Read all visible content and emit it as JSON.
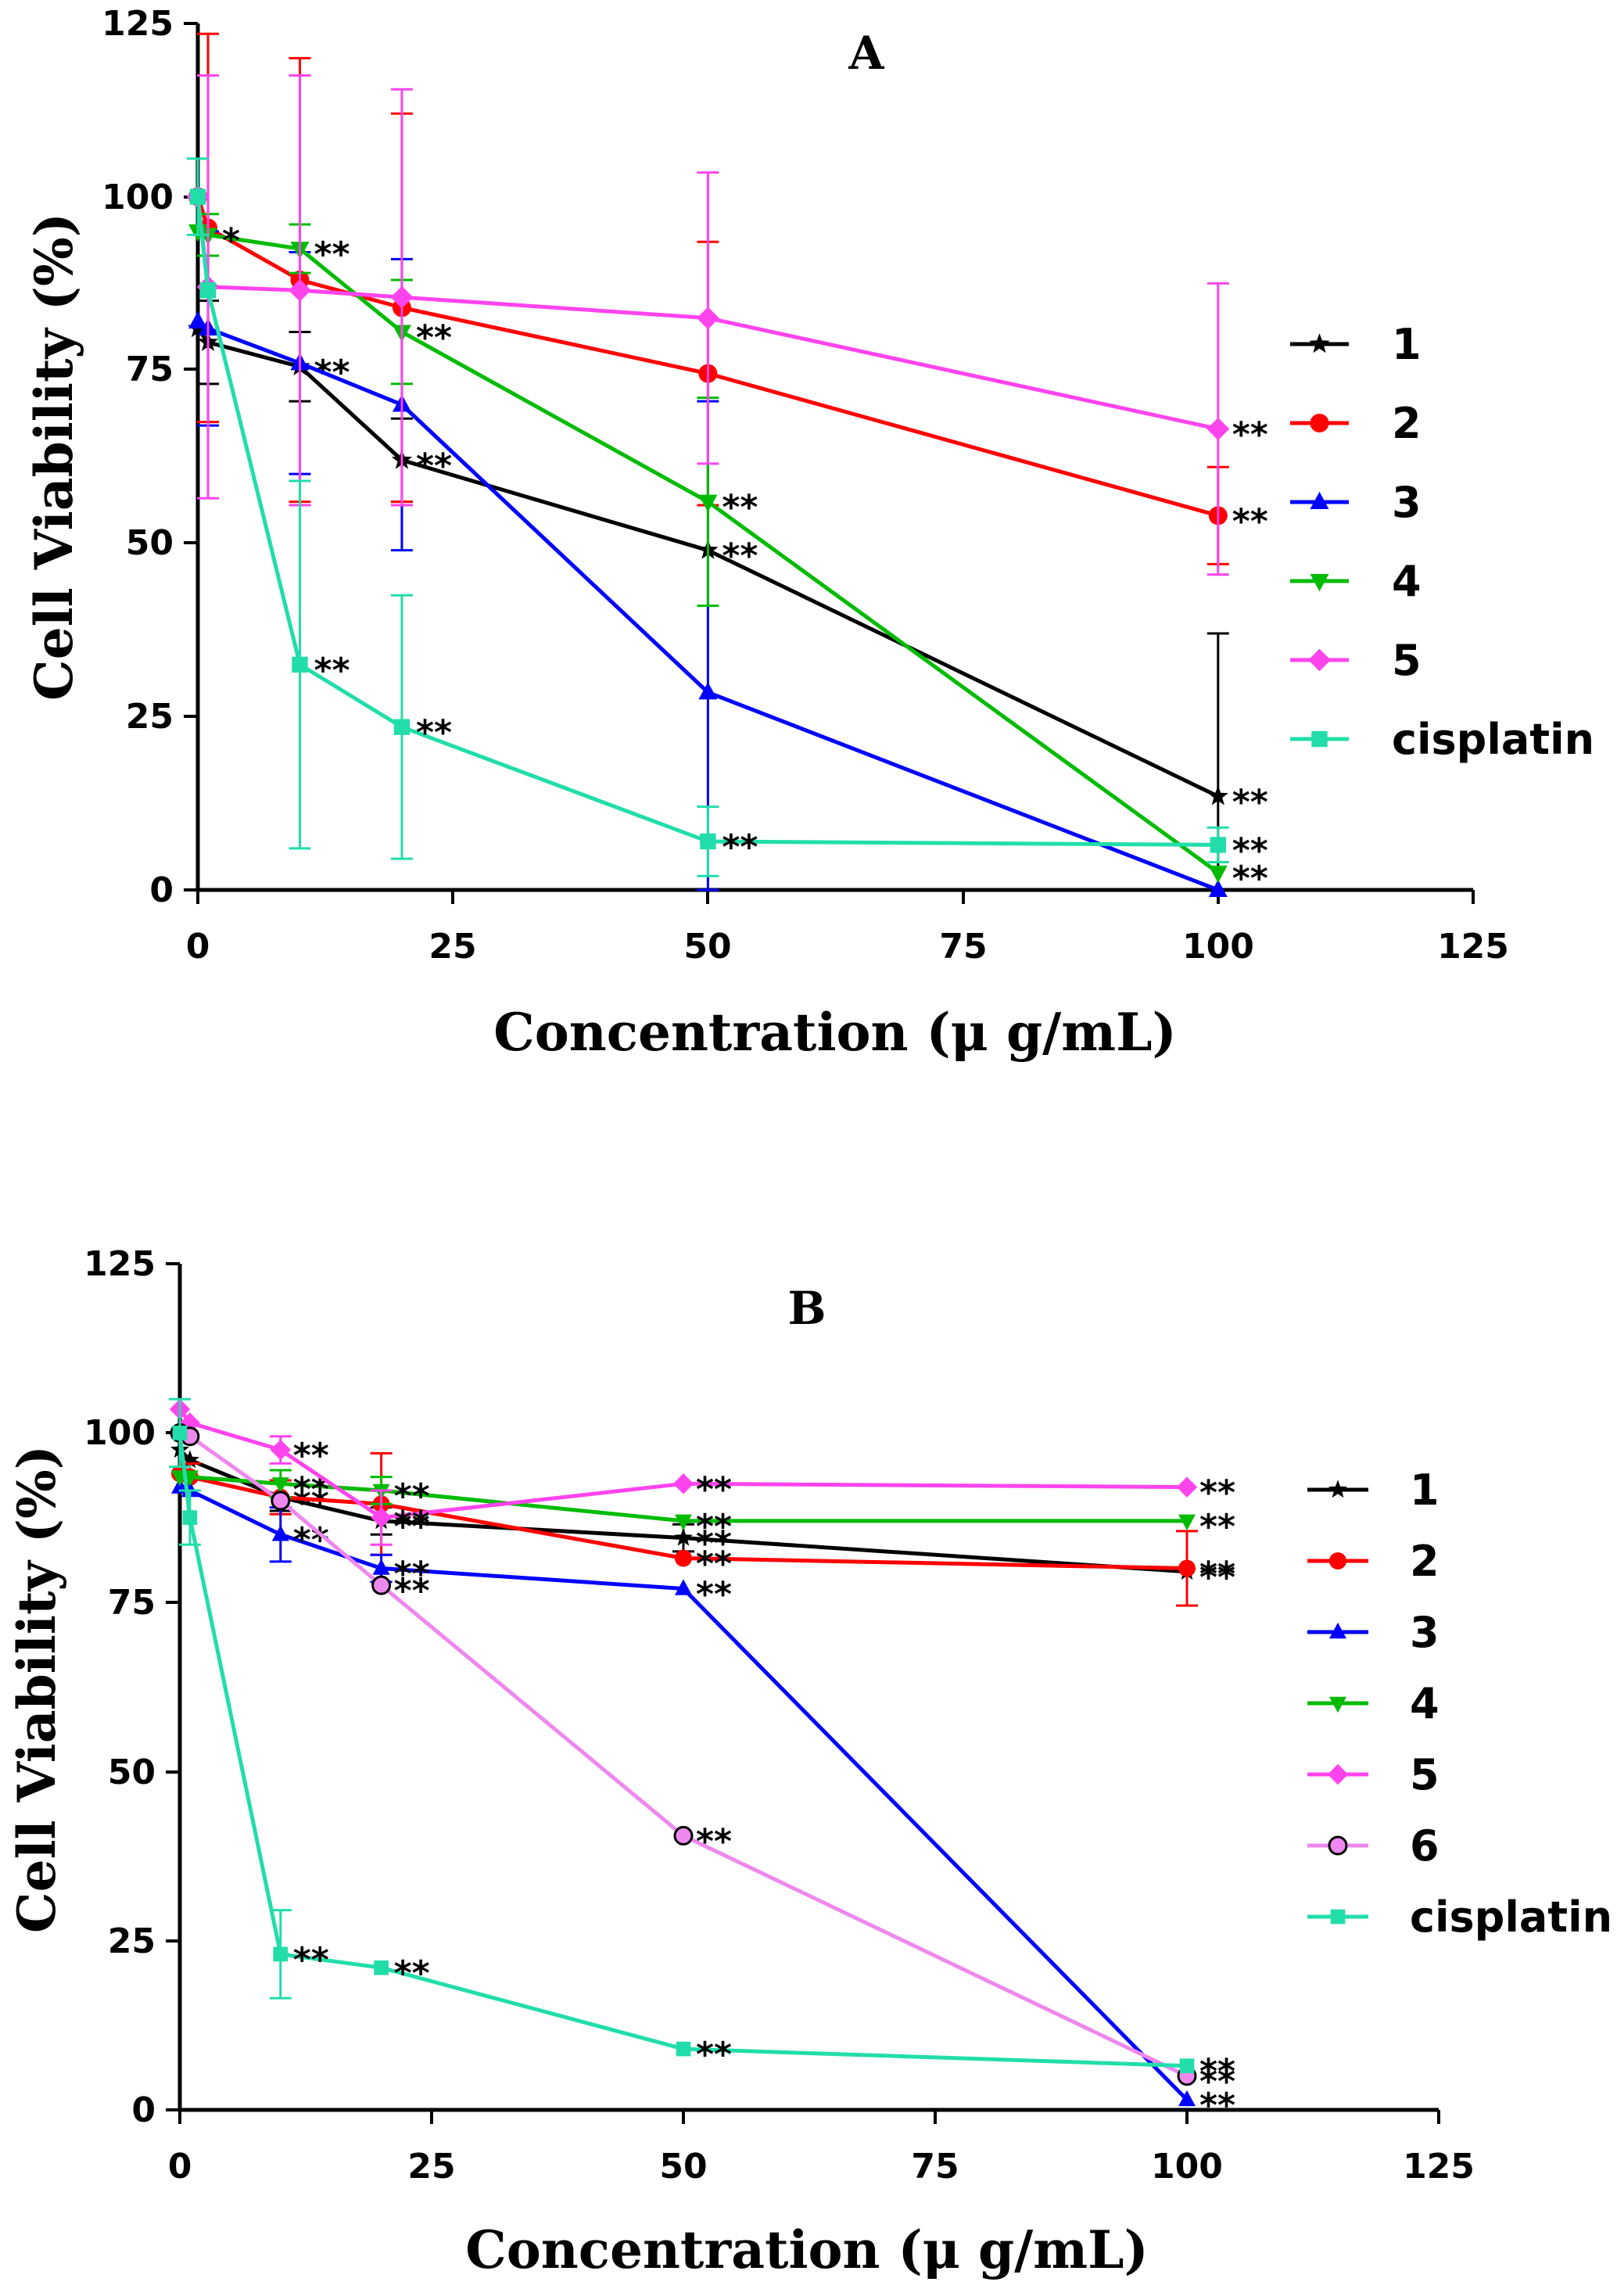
{
  "chart_data": [
    {
      "type": "line",
      "panel": "A",
      "title": "A",
      "xlabel": "Concentration (μ g/mL)",
      "ylabel": "Cell Viability (%)",
      "xlim": [
        0,
        125
      ],
      "ylim": [
        0,
        125
      ],
      "xticks": [
        "0",
        "25",
        "50",
        "75",
        "100",
        "125"
      ],
      "yticks": [
        "0",
        "25",
        "50",
        "75",
        "100",
        "125"
      ],
      "legend_position": "right",
      "series": [
        {
          "name": "1",
          "color": "#000000",
          "marker": "star",
          "x": [
            0,
            1,
            10,
            20,
            50,
            100
          ],
          "y": [
            81,
            79,
            75.5,
            62,
            49,
            13.5
          ],
          "err": [
            0,
            6,
            5,
            6,
            0,
            23.5
          ],
          "sig": [
            "",
            "",
            "**",
            "**",
            "**",
            "**"
          ]
        },
        {
          "name": "2",
          "color": "#ff0000",
          "marker": "circle",
          "x": [
            0,
            1,
            10,
            20,
            50,
            100
          ],
          "y": [
            100,
            95.5,
            88,
            84,
            74.5,
            54
          ],
          "err": [
            0,
            28,
            32,
            28,
            19,
            7
          ],
          "sig": [
            "",
            "",
            "",
            "",
            "",
            "**"
          ]
        },
        {
          "name": "3",
          "color": "#0000ff",
          "marker": "triangle-up",
          "x": [
            0,
            1,
            10,
            20,
            50,
            100
          ],
          "y": [
            82,
            81,
            76,
            70,
            28.5,
            0
          ],
          "err": [
            0,
            14,
            16,
            21,
            42,
            0
          ],
          "sig": [
            "",
            "",
            "",
            "",
            "",
            ""
          ]
        },
        {
          "name": "4",
          "color": "#00bb00",
          "marker": "triangle-down",
          "x": [
            0,
            1,
            10,
            20,
            50,
            100
          ],
          "y": [
            95,
            94.5,
            92.5,
            80.5,
            56,
            2.5
          ],
          "err": [
            0,
            3,
            3.5,
            7.5,
            15,
            0
          ],
          "sig": [
            "",
            "*",
            "**",
            "**",
            "**",
            "**"
          ]
        },
        {
          "name": "5",
          "color": "#ff44ee",
          "marker": "diamond",
          "x": [
            0,
            1,
            10,
            20,
            50,
            100
          ],
          "y": [
            100,
            87,
            86.5,
            85.5,
            82.5,
            66.5
          ],
          "err": [
            0,
            30.5,
            31,
            30,
            21,
            21
          ],
          "sig": [
            "",
            "",
            "",
            "",
            "",
            "**"
          ]
        },
        {
          "name": "cisplatin",
          "color": "#22ddaa",
          "marker": "square",
          "x": [
            0,
            1,
            10,
            20,
            50,
            100
          ],
          "y": [
            100,
            86.5,
            32.5,
            23.5,
            7,
            6.5
          ],
          "err": [
            5.5,
            0,
            26.5,
            19,
            5,
            2.5
          ],
          "sig": [
            "",
            "",
            "**",
            "**",
            "**",
            "**"
          ]
        }
      ]
    },
    {
      "type": "line",
      "panel": "B",
      "title": "B",
      "xlabel": "Concentration (μ g/mL)",
      "ylabel": "Cell Viability (%)",
      "xlim": [
        0,
        125
      ],
      "ylim": [
        0,
        125
      ],
      "xticks": [
        "0",
        "25",
        "50",
        "75",
        "100",
        "125"
      ],
      "yticks": [
        "0",
        "25",
        "50",
        "75",
        "100",
        "125"
      ],
      "legend_position": "right",
      "series": [
        {
          "name": "1",
          "color": "#000000",
          "marker": "star",
          "x": [
            0,
            1,
            10,
            20,
            50,
            100
          ],
          "y": [
            97.5,
            96,
            90.5,
            87,
            84.5,
            79.5
          ],
          "err": [
            0,
            0,
            2,
            2,
            2,
            0
          ],
          "sig": [
            "",
            "",
            "**",
            "**",
            "**",
            "**"
          ]
        },
        {
          "name": "2",
          "color": "#ff0000",
          "marker": "circle",
          "x": [
            0,
            1,
            10,
            20,
            50,
            100
          ],
          "y": [
            94,
            93.5,
            90.5,
            89.5,
            81.5,
            80
          ],
          "err": [
            0,
            2,
            2.5,
            7.5,
            0,
            5.5
          ],
          "sig": [
            "",
            "",
            "",
            "",
            "**",
            "**"
          ]
        },
        {
          "name": "3",
          "color": "#0000ff",
          "marker": "triangle-up",
          "x": [
            0,
            1,
            10,
            20,
            50,
            100
          ],
          "y": [
            92,
            91.5,
            85,
            80,
            77,
            1.5
          ],
          "err": [
            0,
            0,
            4,
            2,
            0,
            0
          ],
          "sig": [
            "",
            "",
            "**",
            "**",
            "**",
            "**"
          ]
        },
        {
          "name": "4",
          "color": "#00bb00",
          "marker": "triangle-down",
          "x": [
            0,
            1,
            10,
            20,
            50,
            100
          ],
          "y": [
            93.5,
            93.5,
            92.5,
            91.5,
            87,
            87
          ],
          "err": [
            0,
            0,
            2,
            2,
            0,
            0
          ],
          "sig": [
            "",
            "",
            "**",
            "**",
            "**",
            "**"
          ]
        },
        {
          "name": "5",
          "color": "#ff44ee",
          "marker": "diamond",
          "x": [
            0,
            1,
            10,
            20,
            50,
            100
          ],
          "y": [
            103.5,
            101.5,
            97.5,
            87.5,
            92.5,
            92
          ],
          "err": [
            0,
            0,
            2,
            4,
            0,
            0
          ],
          "sig": [
            "",
            "",
            "**",
            "**",
            "**",
            "**"
          ]
        },
        {
          "name": "6",
          "color": "#ee88ee",
          "marker": "circle-outline",
          "x": [
            0,
            1,
            10,
            20,
            50,
            100
          ],
          "y": [
            100,
            99.5,
            90,
            77.5,
            40.5,
            5
          ],
          "err": [
            0,
            0,
            0,
            0,
            0,
            0
          ],
          "sig": [
            "",
            "",
            "",
            "**",
            "**",
            "**"
          ]
        },
        {
          "name": "cisplatin",
          "color": "#22ddaa",
          "marker": "square",
          "x": [
            0,
            1,
            10,
            20,
            50,
            100
          ],
          "y": [
            100,
            87.5,
            23,
            21,
            9,
            6.5
          ],
          "err": [
            5,
            4,
            6.5,
            0,
            0,
            0
          ],
          "sig": [
            "",
            "",
            "**",
            "**",
            "**",
            "**"
          ]
        }
      ]
    }
  ]
}
